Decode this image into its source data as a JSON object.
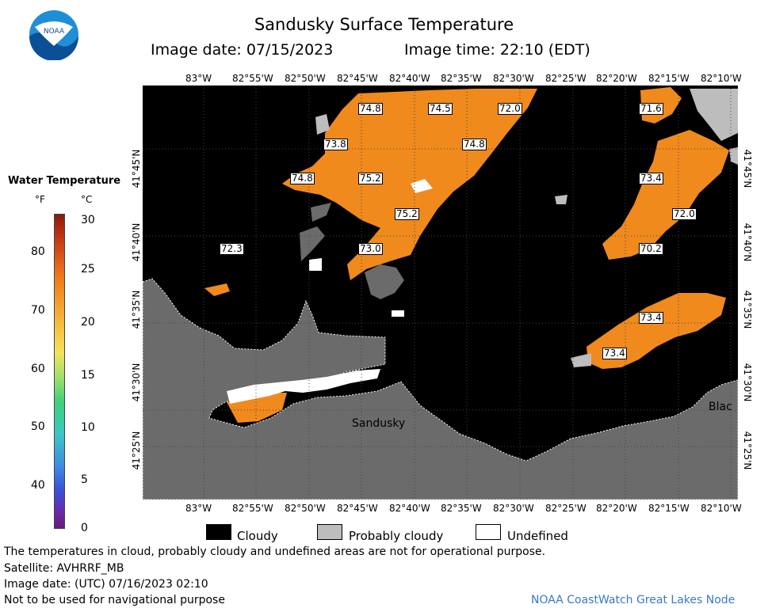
{
  "title": "Sandusky Surface Temperature",
  "subtitle": {
    "image_date": "Image date: 07/15/2023",
    "image_time": "Image time: 22:10 (EDT)"
  },
  "logo": {
    "text": "NOAA",
    "icon": "noaa-logo-icon"
  },
  "legend": {
    "title": "Water Temperature",
    "unit_f": "°F",
    "unit_c": "°C",
    "f_ticks": [
      "80",
      "70",
      "60",
      "50",
      "40"
    ],
    "c_ticks": [
      "30",
      "25",
      "20",
      "15",
      "10",
      "5",
      "0"
    ]
  },
  "map": {
    "lon_labels_top": [
      "83°W",
      "82°55'W",
      "82°50'W",
      "82°45'W",
      "82°40'W",
      "82°35'W",
      "82°30'W",
      "82°25'W",
      "82°20'W",
      "82°15'W",
      "82°10'W"
    ],
    "lon_labels_bottom": [
      "83°W",
      "82°55'W",
      "82°50'W",
      "82°45'W",
      "82°40'W",
      "82°35'W",
      "82°30'W",
      "82°25'W",
      "82°20'W",
      "82°15'W",
      "82°10'W"
    ],
    "lat_labels_left": [
      "41°45'N",
      "41°40'N",
      "41°35'N",
      "41°30'N",
      "41°25'N"
    ],
    "lat_labels_right": [
      "41°45'N",
      "41°40'N",
      "41°35'N",
      "41°30'N",
      "41°25'N"
    ],
    "temperature_labels": [
      "74.8",
      "74.5",
      "72.0",
      "71.6",
      "73.8",
      "74.8",
      "74.8",
      "75.2",
      "73.4",
      "75.2",
      "72.0",
      "72.3",
      "73.0",
      "70.2",
      "73.4",
      "73.4"
    ],
    "place_names": [
      "Sandusky",
      "Blac"
    ]
  },
  "key": {
    "cloudy": "Cloudy",
    "probably_cloudy": "Probably cloudy",
    "undefined": "Undefined"
  },
  "footer": {
    "note": "The temperatures in cloud, probably cloudy and undefined areas are not for operational purpose.",
    "satellite": "Satellite: AVHRRF_MB",
    "utc_date": "Image date: (UTC) 07/16/2023  02:10",
    "nav": "Not to be used for navigational purpose",
    "node": "NOAA CoastWatch Great Lakes Node"
  },
  "colors": {
    "water_warm": "#f08a1c",
    "cloudy": "#000000",
    "probably_cloudy": "#bdbdbd",
    "undefined": "#ffffff",
    "land": "#6b6b6b",
    "noaa_blue": "#1f8ed8",
    "node_text": "#3a78c8"
  }
}
